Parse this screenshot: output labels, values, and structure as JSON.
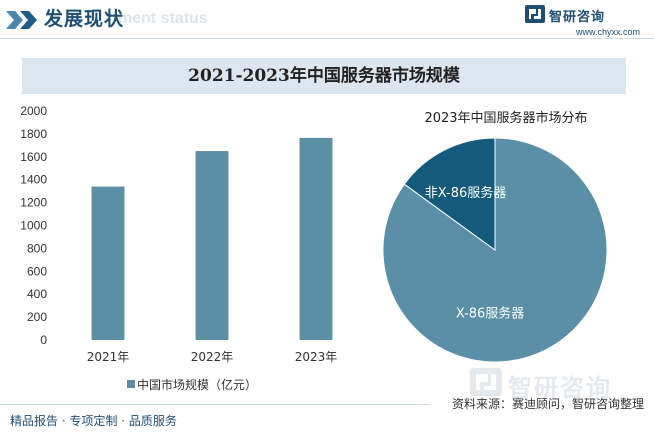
{
  "header": {
    "title": "发展现状",
    "subtitle_en": "ment status"
  },
  "brand": {
    "name": "智研咨询",
    "url": "www.chyxx.com"
  },
  "chart_title": "2021-2023年中国服务器市场规模",
  "chart_data": [
    {
      "type": "bar",
      "categories": [
        "2021年",
        "2022年",
        "2023年"
      ],
      "series": [
        {
          "name": "中国市场规模（亿元）",
          "values": [
            1340,
            1650,
            1765
          ]
        }
      ],
      "ylim": [
        0,
        2000
      ],
      "yticks": [
        0,
        200,
        400,
        600,
        800,
        1000,
        1200,
        1400,
        1600,
        1800,
        2000
      ],
      "legend_position": "bottom",
      "color": "#5c8fa6"
    },
    {
      "type": "pie",
      "title": "2023年中国服务器市场分布",
      "labels": [
        "X-86服务器",
        "非X-86服务器"
      ],
      "values": [
        85,
        15
      ],
      "colors": [
        "#5b8fa8",
        "#145a7d"
      ]
    }
  ],
  "watermark": "智研咨询",
  "source": "资料来源：赛迪顾问，智研咨询整理",
  "footer": "精品报告 · 专项定制 · 品质服务"
}
